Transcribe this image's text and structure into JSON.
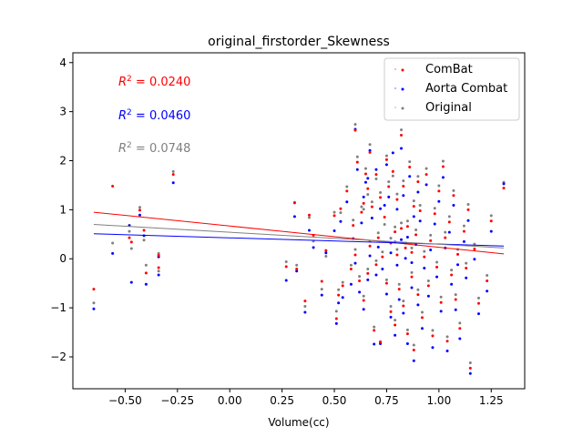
{
  "chart_data": {
    "type": "scatter",
    "title": "original_firstorder_Skewness",
    "xlabel": "Volume(cc)",
    "ylabel": "",
    "xlim": [
      -0.75,
      1.41
    ],
    "ylim": [
      -2.65,
      4.2
    ],
    "xticks": [
      -0.5,
      -0.25,
      0.0,
      0.25,
      0.5,
      0.75,
      1.0,
      1.25
    ],
    "xtick_labels": [
      "−0.50",
      "−0.25",
      "0.00",
      "0.25",
      "0.50",
      "0.75",
      "1.00",
      "1.25"
    ],
    "yticks": [
      -2,
      -1,
      0,
      1,
      2,
      3,
      4
    ],
    "ytick_labels": [
      "−2",
      "−1",
      "0",
      "1",
      "2",
      "3",
      "4"
    ],
    "grid": false,
    "legend_position": "top-right",
    "x": [
      -0.65,
      -0.56,
      -0.48,
      -0.47,
      -0.43,
      -0.41,
      -0.4,
      -0.34,
      -0.34,
      -0.27,
      0.27,
      0.31,
      0.32,
      0.36,
      0.38,
      0.4,
      0.44,
      0.46,
      0.5,
      0.51,
      0.52,
      0.53,
      0.54,
      0.56,
      0.58,
      0.59,
      0.6,
      0.6,
      0.61,
      0.62,
      0.63,
      0.64,
      0.64,
      0.65,
      0.66,
      0.66,
      0.67,
      0.67,
      0.68,
      0.69,
      0.7,
      0.7,
      0.71,
      0.72,
      0.72,
      0.73,
      0.74,
      0.75,
      0.75,
      0.76,
      0.77,
      0.77,
      0.78,
      0.79,
      0.79,
      0.8,
      0.8,
      0.81,
      0.82,
      0.82,
      0.83,
      0.83,
      0.84,
      0.85,
      0.85,
      0.86,
      0.87,
      0.87,
      0.88,
      0.88,
      0.89,
      0.9,
      0.9,
      0.91,
      0.92,
      0.93,
      0.94,
      0.95,
      0.96,
      0.97,
      0.98,
      0.99,
      1.0,
      1.01,
      1.02,
      1.03,
      1.04,
      1.05,
      1.06,
      1.07,
      1.08,
      1.09,
      1.1,
      1.12,
      1.13,
      1.14,
      1.15,
      1.17,
      1.19,
      1.23,
      1.25,
      1.31
    ],
    "series": [
      {
        "name": "ComBat",
        "color": "#ff0000",
        "r2_label": "= 0.0240",
        "fit": [
          [
            -0.65,
            0.95
          ],
          [
            1.31,
            0.1
          ]
        ],
        "y": [
          -0.62,
          1.48,
          0.43,
          0.34,
          0.99,
          0.58,
          -0.29,
          0.07,
          -0.18,
          1.72,
          -0.16,
          1.14,
          -0.21,
          -0.86,
          0.89,
          0.48,
          -0.46,
          0.17,
          0.88,
          -1.22,
          -0.74,
          1.02,
          -0.55,
          1.38,
          -0.21,
          0.68,
          2.62,
          0.08,
          1.97,
          -0.45,
          0.95,
          1.13,
          -0.85,
          1.73,
          1.43,
          -0.3,
          2.17,
          0.26,
          1.06,
          -1.46,
          -0.12,
          1.72,
          0.43,
          1.25,
          -1.7,
          0.04,
          0.85,
          2.02,
          -0.5,
          1.47,
          -1.08,
          0.32,
          1.78,
          0.55,
          -1.35,
          0.08,
          1.21,
          -0.62,
          2.52,
          0.62,
          -0.96,
          1.48,
          0.22,
          -1.53,
          0.66,
          1.87,
          -0.37,
          0.13,
          1.07,
          -1.86,
          0.49,
          1.57,
          -0.73,
          0.98,
          -1.2,
          0.04,
          1.72,
          -0.55,
          0.37,
          -1.57,
          0.92,
          -0.17,
          1.38,
          -0.89,
          1.88,
          0.43,
          -1.68,
          0.75,
          -0.33,
          1.29,
          -0.83,
          0.09,
          -1.42,
          0.56,
          -0.19,
          1.0,
          -2.23,
          0.2,
          -0.91,
          -0.45,
          0.77,
          1.44
        ]
      },
      {
        "name": "Aorta Combat",
        "color": "#0000ff",
        "r2_label": "= 0.0460",
        "fit": [
          [
            -0.65,
            0.51
          ],
          [
            1.31,
            0.26
          ]
        ],
        "y": [
          -1.02,
          0.11,
          0.68,
          -0.48,
          0.89,
          0.47,
          -0.52,
          0.04,
          -0.33,
          1.55,
          -0.44,
          0.86,
          -0.25,
          -1.09,
          0.58,
          0.23,
          -0.74,
          0.12,
          0.57,
          -1.32,
          -0.9,
          0.76,
          -0.79,
          1.16,
          -0.52,
          0.41,
          2.64,
          -0.09,
          1.82,
          -0.68,
          0.73,
          1.26,
          -1.03,
          1.56,
          1.64,
          -0.43,
          2.21,
          0.06,
          0.83,
          -1.74,
          -0.33,
          1.82,
          0.24,
          1.02,
          -1.73,
          -0.21,
          1.09,
          1.92,
          -0.72,
          1.26,
          -1.19,
          0.12,
          2.16,
          0.34,
          -1.56,
          -0.13,
          1.01,
          -0.83,
          2.25,
          0.39,
          -1.11,
          1.29,
          0.01,
          -1.73,
          0.44,
          1.68,
          -0.59,
          -0.08,
          0.86,
          -2.08,
          0.29,
          1.36,
          -0.94,
          0.77,
          -1.42,
          -0.19,
          1.51,
          -0.76,
          0.18,
          -1.81,
          0.71,
          -0.37,
          1.17,
          -1.07,
          1.66,
          0.22,
          -1.88,
          0.54,
          -0.52,
          1.09,
          -1.04,
          -0.12,
          -1.63,
          0.35,
          -0.39,
          0.78,
          -2.34,
          -0.01,
          -1.12,
          -0.66,
          0.56,
          1.53
        ]
      },
      {
        "name": "Original",
        "color": "#808080",
        "r2_label": "= 0.0748",
        "fit": [
          [
            -0.65,
            0.7
          ],
          [
            1.31,
            0.22
          ]
        ],
        "y": [
          -0.9,
          0.32,
          0.56,
          0.21,
          1.05,
          0.38,
          -0.13,
          0.11,
          -0.25,
          1.78,
          -0.06,
          1.15,
          -0.13,
          -0.97,
          0.84,
          0.36,
          -0.62,
          0.05,
          0.95,
          -1.07,
          -0.63,
          0.94,
          -0.48,
          1.47,
          -0.13,
          0.79,
          2.74,
          0.19,
          2.08,
          -0.36,
          1.06,
          1.01,
          -0.76,
          1.84,
          1.31,
          -0.21,
          2.33,
          0.36,
          1.16,
          -1.39,
          -0.04,
          1.63,
          0.53,
          1.35,
          -1.69,
          0.14,
          0.7,
          2.1,
          -0.43,
          1.57,
          -0.97,
          0.42,
          1.69,
          0.65,
          -1.25,
          0.19,
          1.32,
          -0.52,
          2.63,
          0.73,
          -0.86,
          1.59,
          0.32,
          -1.45,
          0.77,
          1.98,
          -0.28,
          0.22,
          1.18,
          -1.76,
          0.59,
          1.68,
          -0.63,
          1.09,
          -1.09,
          0.15,
          1.84,
          -0.45,
          0.48,
          -1.46,
          1.03,
          -0.07,
          1.49,
          -0.78,
          1.99,
          0.54,
          -1.59,
          0.86,
          -0.23,
          1.39,
          -0.73,
          0.19,
          -1.31,
          0.67,
          -0.09,
          1.11,
          -2.12,
          0.3,
          -0.8,
          -0.34,
          0.88,
          1.56
        ]
      }
    ]
  }
}
